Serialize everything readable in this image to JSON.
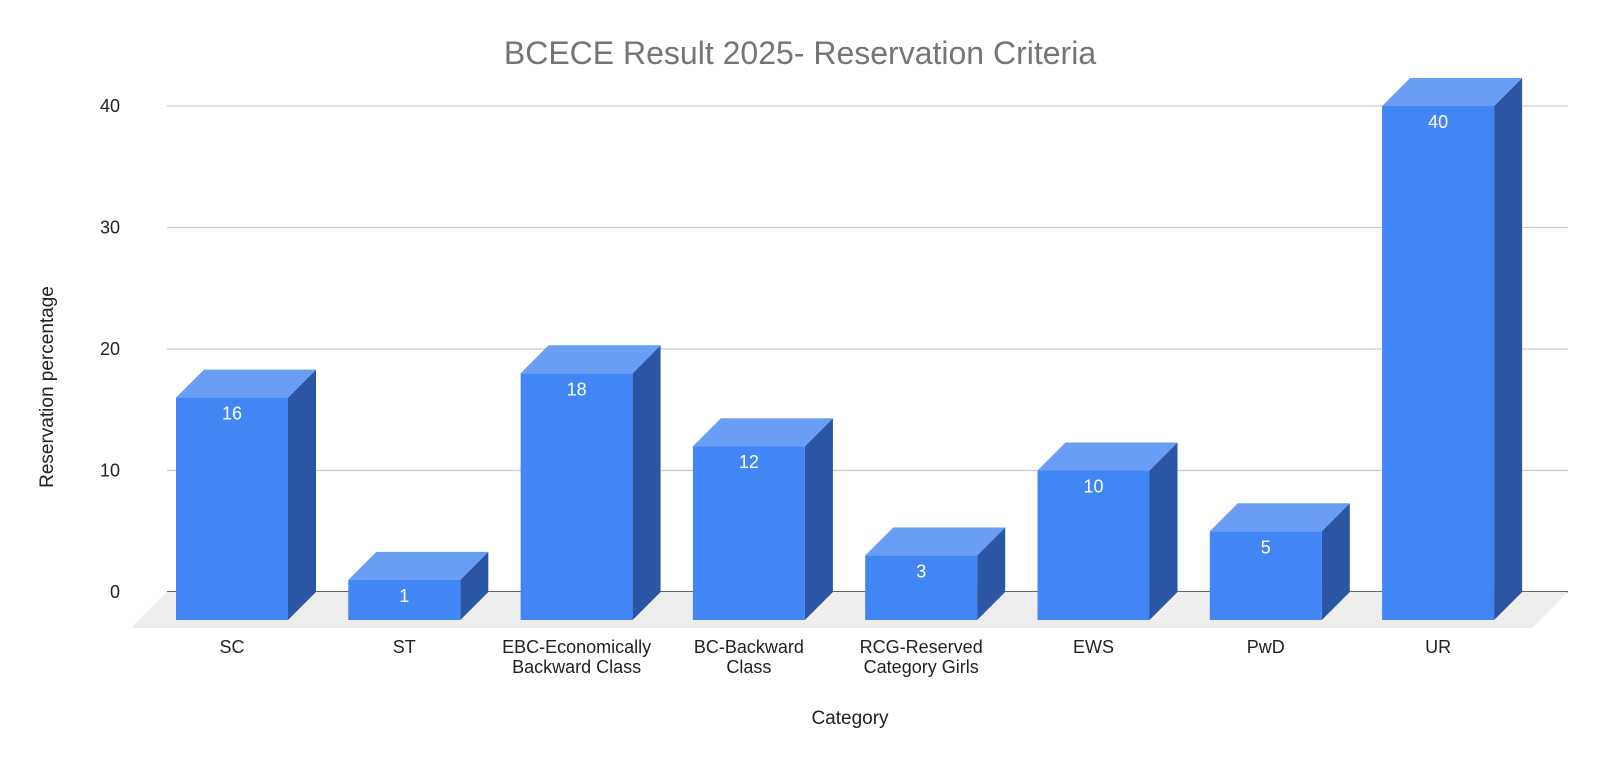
{
  "chart_data": {
    "type": "bar",
    "title": "BCECE Result 2025- Reservation Criteria",
    "xlabel": "Category",
    "ylabel": "Reservation percentage",
    "ylim": [
      0,
      40
    ],
    "yticks": [
      "0",
      "10",
      "20",
      "30",
      "40"
    ],
    "categories": [
      [
        "SC"
      ],
      [
        "ST"
      ],
      [
        "EBC-Economically",
        "Backward Class"
      ],
      [
        "BC-Backward",
        "Class"
      ],
      [
        "RCG-Reserved",
        "Category Girls"
      ],
      [
        "EWS"
      ],
      [
        "PwD"
      ],
      [
        "UR"
      ]
    ],
    "values": [
      16,
      1,
      18,
      12,
      3,
      10,
      5,
      40
    ],
    "grid": true,
    "legend": "none",
    "colors": {
      "bar_front": "#4285f4",
      "bar_top": "#6a9ef5",
      "bar_side": "#2a56a4",
      "floor": "#eeeeee",
      "grid": "#cccccc",
      "zero_line": "#333333"
    }
  }
}
